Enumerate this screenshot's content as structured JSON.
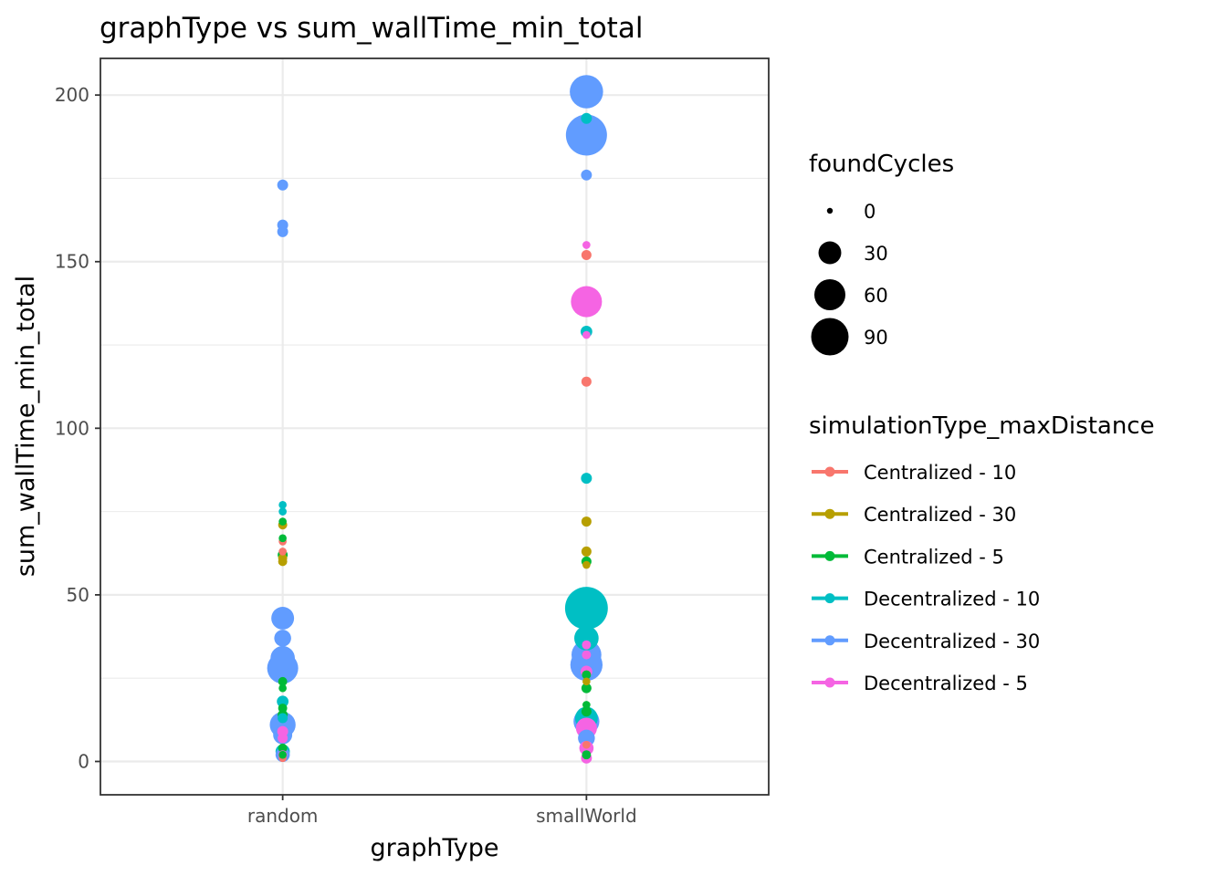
{
  "chart_data": {
    "type": "scatter",
    "title": "graphType  vs  sum_wallTime_min_total",
    "xlabel": "graphType",
    "ylabel": "sum_wallTime_min_total",
    "categories": [
      "random",
      "smallWorld"
    ],
    "ylim": [
      -10,
      211
    ],
    "yticks": [
      0,
      50,
      100,
      150,
      200
    ],
    "grid": true,
    "legend_placement": "right",
    "size_legend": {
      "title": "foundCycles",
      "values": [
        0,
        30,
        60,
        90
      ],
      "labels": [
        "0",
        "30",
        "60",
        "90"
      ]
    },
    "color_legend": {
      "title": "simulationType_maxDistance",
      "entries": [
        "Centralized - 10",
        "Centralized - 30",
        "Centralized - 5",
        "Decentralized - 10",
        "Decentralized - 30",
        "Decentralized - 5"
      ]
    },
    "series": [
      {
        "name": "Centralized - 10",
        "color": "#F8766D",
        "points": [
          {
            "x": "random",
            "y": 66,
            "size": 2
          },
          {
            "x": "random",
            "y": 63,
            "size": 2
          },
          {
            "x": "random",
            "y": 1,
            "size": 2
          },
          {
            "x": "smallWorld",
            "y": 152,
            "size": 4
          },
          {
            "x": "smallWorld",
            "y": 114,
            "size": 4
          },
          {
            "x": "smallWorld",
            "y": 5,
            "size": 2
          }
        ]
      },
      {
        "name": "Centralized - 30",
        "color": "#B79F00",
        "points": [
          {
            "x": "random",
            "y": 71,
            "size": 3
          },
          {
            "x": "random",
            "y": 61,
            "size": 3
          },
          {
            "x": "random",
            "y": 60,
            "size": 3
          },
          {
            "x": "smallWorld",
            "y": 72,
            "size": 4
          },
          {
            "x": "smallWorld",
            "y": 63,
            "size": 4
          },
          {
            "x": "smallWorld",
            "y": 59,
            "size": 2
          },
          {
            "x": "smallWorld",
            "y": 24,
            "size": 2
          }
        ]
      },
      {
        "name": "Centralized - 5",
        "color": "#00BA38",
        "points": [
          {
            "x": "random",
            "y": 72,
            "size": 2
          },
          {
            "x": "random",
            "y": 67,
            "size": 2
          },
          {
            "x": "random",
            "y": 62,
            "size": 4
          },
          {
            "x": "random",
            "y": 24,
            "size": 3
          },
          {
            "x": "random",
            "y": 22,
            "size": 2
          },
          {
            "x": "random",
            "y": 16,
            "size": 3
          },
          {
            "x": "random",
            "y": 14,
            "size": 4
          },
          {
            "x": "random",
            "y": 4,
            "size": 3
          },
          {
            "x": "random",
            "y": 2,
            "size": 2
          },
          {
            "x": "smallWorld",
            "y": 60,
            "size": 4
          },
          {
            "x": "smallWorld",
            "y": 26,
            "size": 3
          },
          {
            "x": "smallWorld",
            "y": 22,
            "size": 4
          },
          {
            "x": "smallWorld",
            "y": 17,
            "size": 2
          },
          {
            "x": "smallWorld",
            "y": 15,
            "size": 4
          },
          {
            "x": "smallWorld",
            "y": 2,
            "size": 3
          }
        ]
      },
      {
        "name": "Decentralized - 10",
        "color": "#00BFC4",
        "points": [
          {
            "x": "random",
            "y": 77,
            "size": 2
          },
          {
            "x": "random",
            "y": 75,
            "size": 2
          },
          {
            "x": "random",
            "y": 18,
            "size": 6
          },
          {
            "x": "random",
            "y": 13,
            "size": 4
          },
          {
            "x": "random",
            "y": 3,
            "size": 10
          },
          {
            "x": "smallWorld",
            "y": 193,
            "size": 5
          },
          {
            "x": "smallWorld",
            "y": 129,
            "size": 6
          },
          {
            "x": "smallWorld",
            "y": 85,
            "size": 5
          },
          {
            "x": "smallWorld",
            "y": 46,
            "size": 120
          },
          {
            "x": "smallWorld",
            "y": 37,
            "size": 35
          },
          {
            "x": "smallWorld",
            "y": 13,
            "size": 30
          }
        ]
      },
      {
        "name": "Decentralized - 30",
        "color": "#619CFF",
        "points": [
          {
            "x": "random",
            "y": 173,
            "size": 5
          },
          {
            "x": "random",
            "y": 161,
            "size": 5
          },
          {
            "x": "random",
            "y": 159,
            "size": 5
          },
          {
            "x": "random",
            "y": 43,
            "size": 30
          },
          {
            "x": "random",
            "y": 37,
            "size": 15
          },
          {
            "x": "random",
            "y": 31,
            "size": 35
          },
          {
            "x": "random",
            "y": 28,
            "size": 60
          },
          {
            "x": "random",
            "y": 11,
            "size": 40
          },
          {
            "x": "random",
            "y": 8,
            "size": 20
          },
          {
            "x": "random",
            "y": 2,
            "size": 10
          },
          {
            "x": "smallWorld",
            "y": 201,
            "size": 70
          },
          {
            "x": "smallWorld",
            "y": 188,
            "size": 110
          },
          {
            "x": "smallWorld",
            "y": 176,
            "size": 5
          },
          {
            "x": "smallWorld",
            "y": 32,
            "size": 55
          },
          {
            "x": "smallWorld",
            "y": 29,
            "size": 65
          },
          {
            "x": "smallWorld",
            "y": 12,
            "size": 40
          },
          {
            "x": "smallWorld",
            "y": 7,
            "size": 15
          }
        ]
      },
      {
        "name": "Decentralized - 5",
        "color": "#F564E3",
        "points": [
          {
            "x": "random",
            "y": 9,
            "size": 5
          },
          {
            "x": "random",
            "y": 7,
            "size": 4
          },
          {
            "x": "random",
            "y": 2,
            "size": 3
          },
          {
            "x": "smallWorld",
            "y": 155,
            "size": 2
          },
          {
            "x": "smallWorld",
            "y": 138,
            "size": 60
          },
          {
            "x": "smallWorld",
            "y": 128,
            "size": 2
          },
          {
            "x": "smallWorld",
            "y": 35,
            "size": 3
          },
          {
            "x": "smallWorld",
            "y": 32,
            "size": 3
          },
          {
            "x": "smallWorld",
            "y": 27,
            "size": 6
          },
          {
            "x": "smallWorld",
            "y": 10,
            "size": 25
          },
          {
            "x": "smallWorld",
            "y": 4,
            "size": 10
          },
          {
            "x": "smallWorld",
            "y": 1,
            "size": 5
          }
        ]
      }
    ]
  }
}
